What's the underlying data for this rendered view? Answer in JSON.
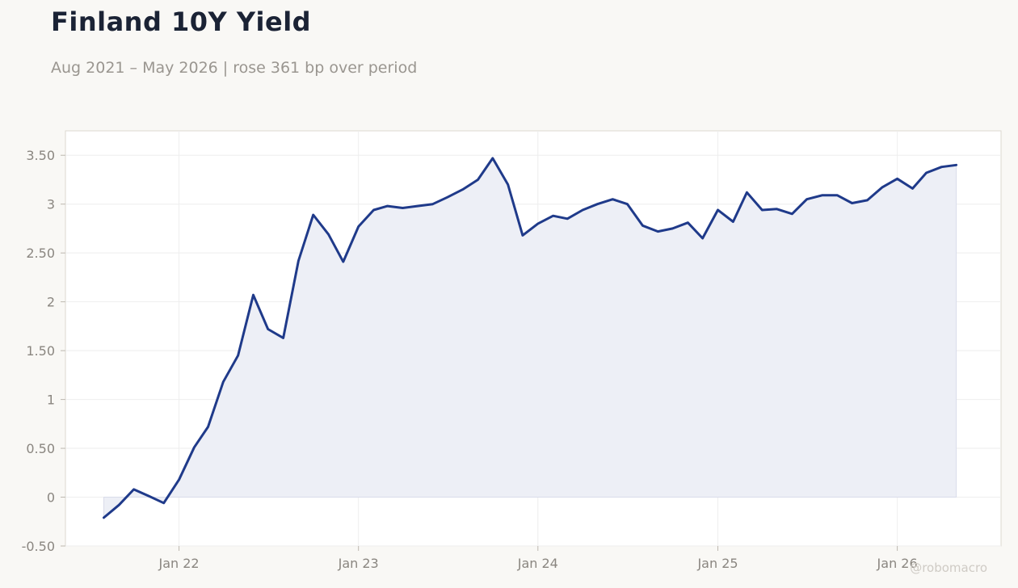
{
  "header": {
    "title": "Finland 10Y Yield",
    "subtitle": "Aug 2021 – May 2026 | rose 361 bp over period"
  },
  "watermark": "@robomacro",
  "colors": {
    "line": "#1f3a8a",
    "fill": "#eceef5",
    "plot_bg": "#ffffff",
    "page_bg": "#f9f8f5",
    "grid": "#eeeeee",
    "tick_text": "#8a8680"
  },
  "chart_data": {
    "type": "area",
    "title": "Finland 10Y Yield",
    "subtitle": "Aug 2021 – May 2026 | rose 361 bp over period",
    "xlabel": "",
    "ylabel": "",
    "ylim": [
      -0.5,
      3.75
    ],
    "xlim": [
      "2021-05-15",
      "2026-07-31"
    ],
    "grid": true,
    "legend": "none",
    "yticks": [
      {
        "value": -0.5,
        "label": "-0.50"
      },
      {
        "value": 0,
        "label": "0"
      },
      {
        "value": 0.5,
        "label": "0.50"
      },
      {
        "value": 1,
        "label": "1"
      },
      {
        "value": 1.5,
        "label": "1.50"
      },
      {
        "value": 2,
        "label": "2"
      },
      {
        "value": 2.5,
        "label": "2.50"
      },
      {
        "value": 3,
        "label": "3"
      },
      {
        "value": 3.5,
        "label": "3.50"
      }
    ],
    "xticks": [
      {
        "value": "2022-01-01",
        "label": "Jan 22"
      },
      {
        "value": "2023-01-01",
        "label": "Jan 23"
      },
      {
        "value": "2024-01-01",
        "label": "Jan 24"
      },
      {
        "value": "2025-01-01",
        "label": "Jan 25"
      },
      {
        "value": "2026-01-01",
        "label": "Jan 26"
      }
    ],
    "baseline": 0,
    "series": [
      {
        "x": [
          "2021-08-01",
          "2021-09-01",
          "2021-10-01",
          "2021-11-01",
          "2021-12-01",
          "2022-01-01",
          "2022-02-01",
          "2022-03-01",
          "2022-04-01",
          "2022-05-01",
          "2022-06-01",
          "2022-07-01",
          "2022-08-01",
          "2022-09-01",
          "2022-10-01",
          "2022-11-01",
          "2022-12-01",
          "2023-01-01",
          "2023-02-01",
          "2023-03-01",
          "2023-04-01",
          "2023-05-01",
          "2023-06-01",
          "2023-07-01",
          "2023-08-01",
          "2023-09-01",
          "2023-10-01",
          "2023-11-01",
          "2023-12-01",
          "2024-01-01",
          "2024-02-01",
          "2024-03-01",
          "2024-04-01",
          "2024-05-01",
          "2024-06-01",
          "2024-07-01",
          "2024-08-01",
          "2024-09-01",
          "2024-10-01",
          "2024-11-01",
          "2024-12-01",
          "2025-01-01",
          "2025-02-01",
          "2025-03-01",
          "2025-04-01",
          "2025-05-01",
          "2025-06-01",
          "2025-07-01",
          "2025-08-01",
          "2025-09-01",
          "2025-10-01",
          "2025-11-01",
          "2025-12-01",
          "2026-01-01",
          "2026-02-01",
          "2026-03-01",
          "2026-04-01",
          "2026-05-01"
        ],
        "values": [
          -0.21,
          -0.08,
          0.08,
          0.01,
          -0.06,
          0.18,
          0.51,
          0.72,
          1.18,
          1.45,
          2.07,
          1.72,
          1.63,
          2.42,
          2.89,
          2.69,
          2.41,
          2.77,
          2.94,
          2.98,
          2.96,
          2.98,
          3.0,
          3.07,
          3.15,
          3.25,
          3.47,
          3.2,
          2.68,
          2.8,
          2.88,
          2.85,
          2.94,
          3.0,
          3.05,
          3.0,
          2.78,
          2.72,
          2.75,
          2.81,
          2.65,
          2.94,
          2.82,
          3.12,
          2.94,
          2.95,
          2.9,
          3.05,
          3.09,
          3.09,
          3.01,
          3.04,
          3.17,
          3.26,
          3.16,
          3.32,
          3.38,
          3.4
        ]
      }
    ]
  }
}
